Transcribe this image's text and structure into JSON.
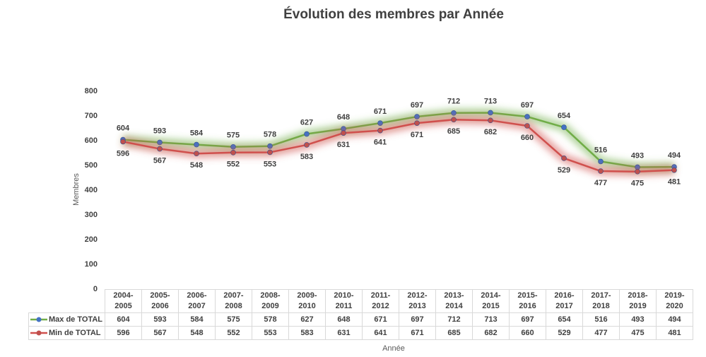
{
  "chart_data": {
    "type": "line",
    "title": "Évolution des membres par Année",
    "y_label": "Membres",
    "x_label": "Année",
    "categories": [
      "2004-\n2005",
      "2005-\n2006",
      "2006-\n2007",
      "2007-\n2008",
      "2008-\n2009",
      "2009-\n2010",
      "2010-\n2011",
      "2011-\n2012",
      "2012-\n2013",
      "2013-\n2014",
      "2014-\n2015",
      "2015-\n2016",
      "2016-\n2017",
      "2017-\n2018",
      "2018-\n2019",
      "2019-\n2020"
    ],
    "series": [
      {
        "name": "Max de TOTAL",
        "color": "#70ad47",
        "marker_color": "#4472c4",
        "label_position": "above",
        "values": [
          604,
          593,
          584,
          575,
          578,
          627,
          648,
          671,
          697,
          712,
          713,
          697,
          654,
          516,
          493,
          494
        ]
      },
      {
        "name": "Min de TOTAL",
        "color": "#d0504d",
        "marker_color": "#c0504d",
        "label_position": "below",
        "values": [
          596,
          567,
          548,
          552,
          553,
          583,
          631,
          641,
          671,
          685,
          682,
          660,
          529,
          477,
          475,
          481
        ]
      }
    ],
    "ylim": [
      0,
      800
    ],
    "yticks": [
      0,
      100,
      200,
      300,
      400,
      500,
      600,
      700,
      800
    ],
    "grid": true
  }
}
